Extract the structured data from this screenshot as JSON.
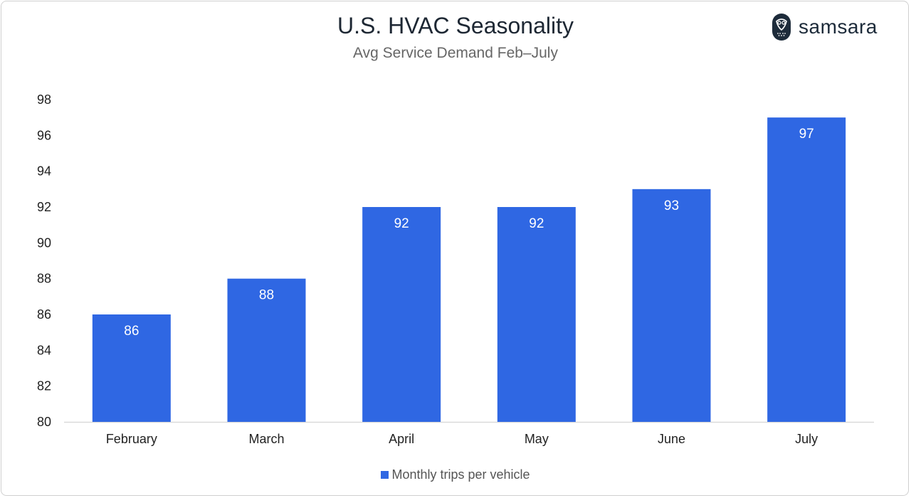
{
  "title": "U.S. HVAC Seasonality",
  "subtitle": "Avg Service Demand Feb–July",
  "logo": {
    "text": "samsara",
    "icon": "owl-logo-icon"
  },
  "colors": {
    "bar": "#2f67e3",
    "title": "#1d2733",
    "axis": "#d9d9d9"
  },
  "chart_data": {
    "type": "bar",
    "title": "U.S. HVAC Seasonality",
    "subtitle": "Avg Service Demand Feb–July",
    "categories": [
      "February",
      "March",
      "April",
      "May",
      "June",
      "July"
    ],
    "series": [
      {
        "name": "Monthly trips per vehicle",
        "values": [
          86,
          88,
          92,
          92,
          93,
          97
        ]
      }
    ],
    "ylim": [
      80,
      98
    ],
    "yticks": [
      80,
      82,
      84,
      86,
      88,
      90,
      92,
      94,
      96,
      98
    ],
    "grid": false,
    "data_labels": true,
    "legend": "bottom-center"
  }
}
